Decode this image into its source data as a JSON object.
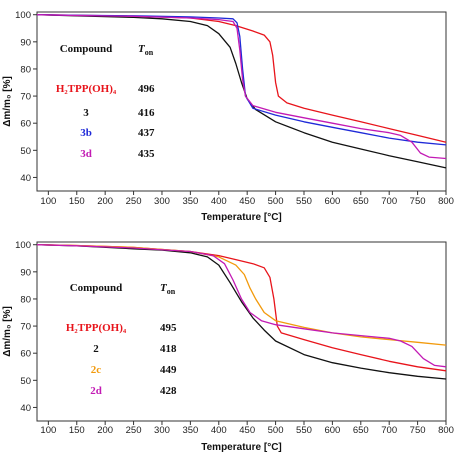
{
  "chart_data": [
    {
      "type": "line",
      "xlabel": "Temperature [°C]",
      "ylabel": "Δm/m₀ [%]",
      "xlim": [
        80,
        800
      ],
      "ylim": [
        35,
        101
      ],
      "xticks": [
        100,
        150,
        200,
        250,
        300,
        350,
        400,
        450,
        500,
        550,
        600,
        650,
        700,
        750,
        800
      ],
      "yticks": [
        40,
        50,
        60,
        70,
        80,
        90,
        100
      ],
      "grid": false,
      "table": {
        "header_left": "Compound",
        "header_right": "T",
        "header_right_sub": "on",
        "rows": [
          {
            "label": "H₂TPP(OH)₄",
            "value": "496",
            "color": "#e8141b"
          },
          {
            "label": "3",
            "value": "416",
            "color": "#111111"
          },
          {
            "label": "3b",
            "value": "437",
            "color": "#1f2ad8"
          },
          {
            "label": "3d",
            "value": "435",
            "color": "#c21ab4"
          }
        ]
      },
      "series": [
        {
          "color": "#e8141b",
          "points": [
            [
              80,
              100
            ],
            [
              150,
              99.8
            ],
            [
              250,
              99.5
            ],
            [
              350,
              98.8
            ],
            [
              400,
              97.5
            ],
            [
              430,
              96
            ],
            [
              460,
              94
            ],
            [
              480,
              92.5
            ],
            [
              490,
              90
            ],
            [
              495,
              85
            ],
            [
              500,
              75
            ],
            [
              505,
              70
            ],
            [
              520,
              67.5
            ],
            [
              550,
              65.5
            ],
            [
              600,
              63
            ],
            [
              650,
              60.5
            ],
            [
              700,
              58
            ],
            [
              750,
              55.5
            ],
            [
              800,
              53
            ]
          ]
        },
        {
          "color": "#111111",
          "points": [
            [
              80,
              100
            ],
            [
              150,
              99.6
            ],
            [
              250,
              99
            ],
            [
              300,
              98.5
            ],
            [
              350,
              97.5
            ],
            [
              380,
              96
            ],
            [
              400,
              93
            ],
            [
              420,
              88
            ],
            [
              430,
              82
            ],
            [
              440,
              75
            ],
            [
              450,
              69
            ],
            [
              465,
              65
            ],
            [
              500,
              60.5
            ],
            [
              550,
              56.5
            ],
            [
              600,
              53
            ],
            [
              650,
              50.5
            ],
            [
              700,
              48
            ],
            [
              750,
              45.8
            ],
            [
              800,
              43.5
            ]
          ]
        },
        {
          "color": "#1f2ad8",
          "points": [
            [
              80,
              100
            ],
            [
              150,
              99.8
            ],
            [
              250,
              99.6
            ],
            [
              350,
              99.2
            ],
            [
              400,
              98.8
            ],
            [
              425,
              98.5
            ],
            [
              432,
              97
            ],
            [
              437,
              92
            ],
            [
              442,
              80
            ],
            [
              447,
              70
            ],
            [
              460,
              65.5
            ],
            [
              500,
              63
            ],
            [
              550,
              60.5
            ],
            [
              600,
              58.5
            ],
            [
              650,
              56.5
            ],
            [
              700,
              54.5
            ],
            [
              750,
              53
            ],
            [
              800,
              52
            ]
          ]
        },
        {
          "color": "#c21ab4",
          "points": [
            [
              80,
              100
            ],
            [
              150,
              99.7
            ],
            [
              250,
              99.4
            ],
            [
              350,
              98.8
            ],
            [
              400,
              98.2
            ],
            [
              425,
              97.5
            ],
            [
              432,
              95
            ],
            [
              437,
              87
            ],
            [
              442,
              76
            ],
            [
              447,
              70
            ],
            [
              460,
              66.5
            ],
            [
              500,
              64
            ],
            [
              550,
              62
            ],
            [
              600,
              60
            ],
            [
              650,
              58
            ],
            [
              700,
              56.5
            ],
            [
              720,
              55.5
            ],
            [
              740,
              53
            ],
            [
              755,
              49
            ],
            [
              770,
              47.5
            ],
            [
              800,
              47
            ]
          ]
        }
      ]
    },
    {
      "type": "line",
      "xlabel": "Temperature [°C]",
      "ylabel": "Δm/m₀ [%]",
      "xlim": [
        80,
        800
      ],
      "ylim": [
        35,
        101
      ],
      "xticks": [
        100,
        150,
        200,
        250,
        300,
        350,
        400,
        450,
        500,
        550,
        600,
        650,
        700,
        750,
        800
      ],
      "yticks": [
        40,
        50,
        60,
        70,
        80,
        90,
        100
      ],
      "grid": false,
      "table": {
        "header_left": "Compound",
        "header_right": "T",
        "header_right_sub": "on",
        "rows": [
          {
            "label": "H₂TPP(OH)₄",
            "value": "495",
            "color": "#e8141b"
          },
          {
            "label": "2",
            "value": "418",
            "color": "#111111"
          },
          {
            "label": "2c",
            "value": "449",
            "color": "#f29a0c"
          },
          {
            "label": "2d",
            "value": "428",
            "color": "#c21ab4"
          }
        ]
      },
      "series": [
        {
          "color": "#e8141b",
          "points": [
            [
              80,
              100
            ],
            [
              150,
              99.7
            ],
            [
              250,
              99
            ],
            [
              350,
              97.5
            ],
            [
              400,
              96
            ],
            [
              430,
              94.5
            ],
            [
              460,
              93
            ],
            [
              480,
              91.5
            ],
            [
              490,
              88
            ],
            [
              497,
              80
            ],
            [
              503,
              70
            ],
            [
              510,
              67.5
            ],
            [
              550,
              65
            ],
            [
              600,
              62
            ],
            [
              650,
              59.5
            ],
            [
              700,
              57
            ],
            [
              750,
              55
            ],
            [
              800,
              53.5
            ]
          ]
        },
        {
          "color": "#111111",
          "points": [
            [
              80,
              100
            ],
            [
              150,
              99.6
            ],
            [
              250,
              98.5
            ],
            [
              300,
              98
            ],
            [
              350,
              97
            ],
            [
              380,
              95.5
            ],
            [
              400,
              92.5
            ],
            [
              420,
              86
            ],
            [
              440,
              79
            ],
            [
              460,
              73
            ],
            [
              480,
              68.5
            ],
            [
              500,
              64.5
            ],
            [
              550,
              59.5
            ],
            [
              600,
              56.5
            ],
            [
              650,
              54.5
            ],
            [
              700,
              52.8
            ],
            [
              750,
              51.5
            ],
            [
              800,
              50.5
            ]
          ]
        },
        {
          "color": "#f29a0c",
          "points": [
            [
              80,
              100
            ],
            [
              150,
              99.7
            ],
            [
              250,
              99
            ],
            [
              350,
              97.5
            ],
            [
              400,
              95.5
            ],
            [
              430,
              92.5
            ],
            [
              445,
              89
            ],
            [
              455,
              84
            ],
            [
              465,
              80
            ],
            [
              480,
              75
            ],
            [
              500,
              72
            ],
            [
              550,
              69.5
            ],
            [
              600,
              67.5
            ],
            [
              650,
              66
            ],
            [
              700,
              65
            ],
            [
              750,
              64
            ],
            [
              800,
              63
            ]
          ]
        },
        {
          "color": "#c21ab4",
          "points": [
            [
              80,
              100
            ],
            [
              150,
              99.6
            ],
            [
              250,
              98.8
            ],
            [
              350,
              97.5
            ],
            [
              390,
              96
            ],
            [
              410,
              93
            ],
            [
              425,
              87
            ],
            [
              440,
              80
            ],
            [
              455,
              75
            ],
            [
              475,
              72
            ],
            [
              500,
              70.5
            ],
            [
              550,
              69
            ],
            [
              600,
              67.5
            ],
            [
              650,
              66.5
            ],
            [
              700,
              65.5
            ],
            [
              720,
              64.5
            ],
            [
              740,
              62.5
            ],
            [
              760,
              58
            ],
            [
              780,
              55.5
            ],
            [
              800,
              55
            ]
          ]
        }
      ]
    }
  ]
}
